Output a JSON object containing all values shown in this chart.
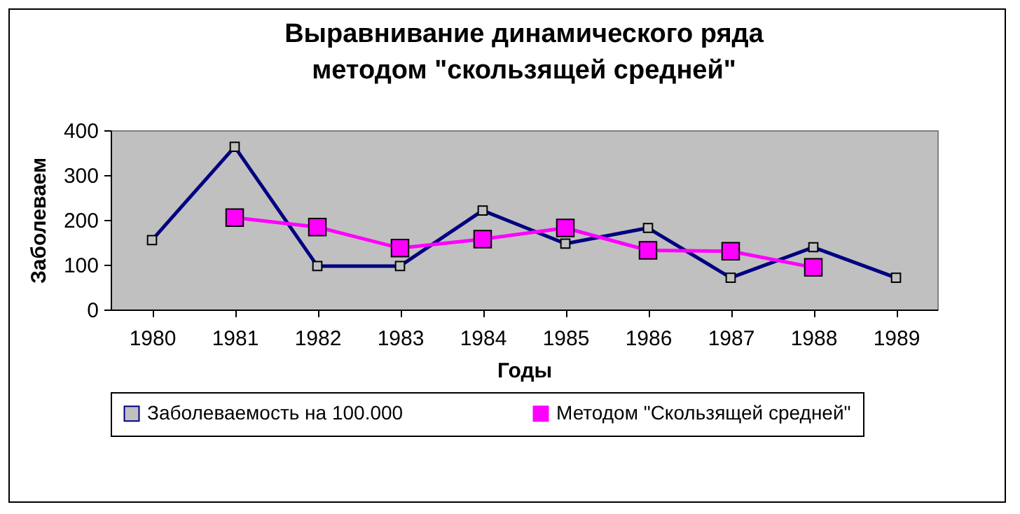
{
  "chart_data": {
    "type": "line",
    "title": "Выравнивание динамического ряда методом \"скользящей средней\"",
    "xlabel": "Годы",
    "ylabel": "Заболеваем",
    "categories": [
      "1980",
      "1981",
      "1982",
      "1983",
      "1984",
      "1985",
      "1986",
      "1987",
      "1988",
      "1989"
    ],
    "series": [
      {
        "name": "Заболеваемость на 100.000",
        "color": "#000080",
        "values": [
          155,
          363,
          97,
          97,
          221,
          147,
          182,
          71,
          139,
          71
        ]
      },
      {
        "name": "Методом \"Скользящей средней\"",
        "color": "#ff00ff",
        "values": [
          null,
          205,
          184,
          137,
          157,
          182,
          132,
          130,
          94,
          null
        ]
      }
    ],
    "ylim": [
      0,
      400
    ],
    "yticks": [
      0,
      100,
      200,
      300,
      400
    ],
    "grid": false,
    "legend": "bottom",
    "marker": "square",
    "line_style": "solid"
  }
}
